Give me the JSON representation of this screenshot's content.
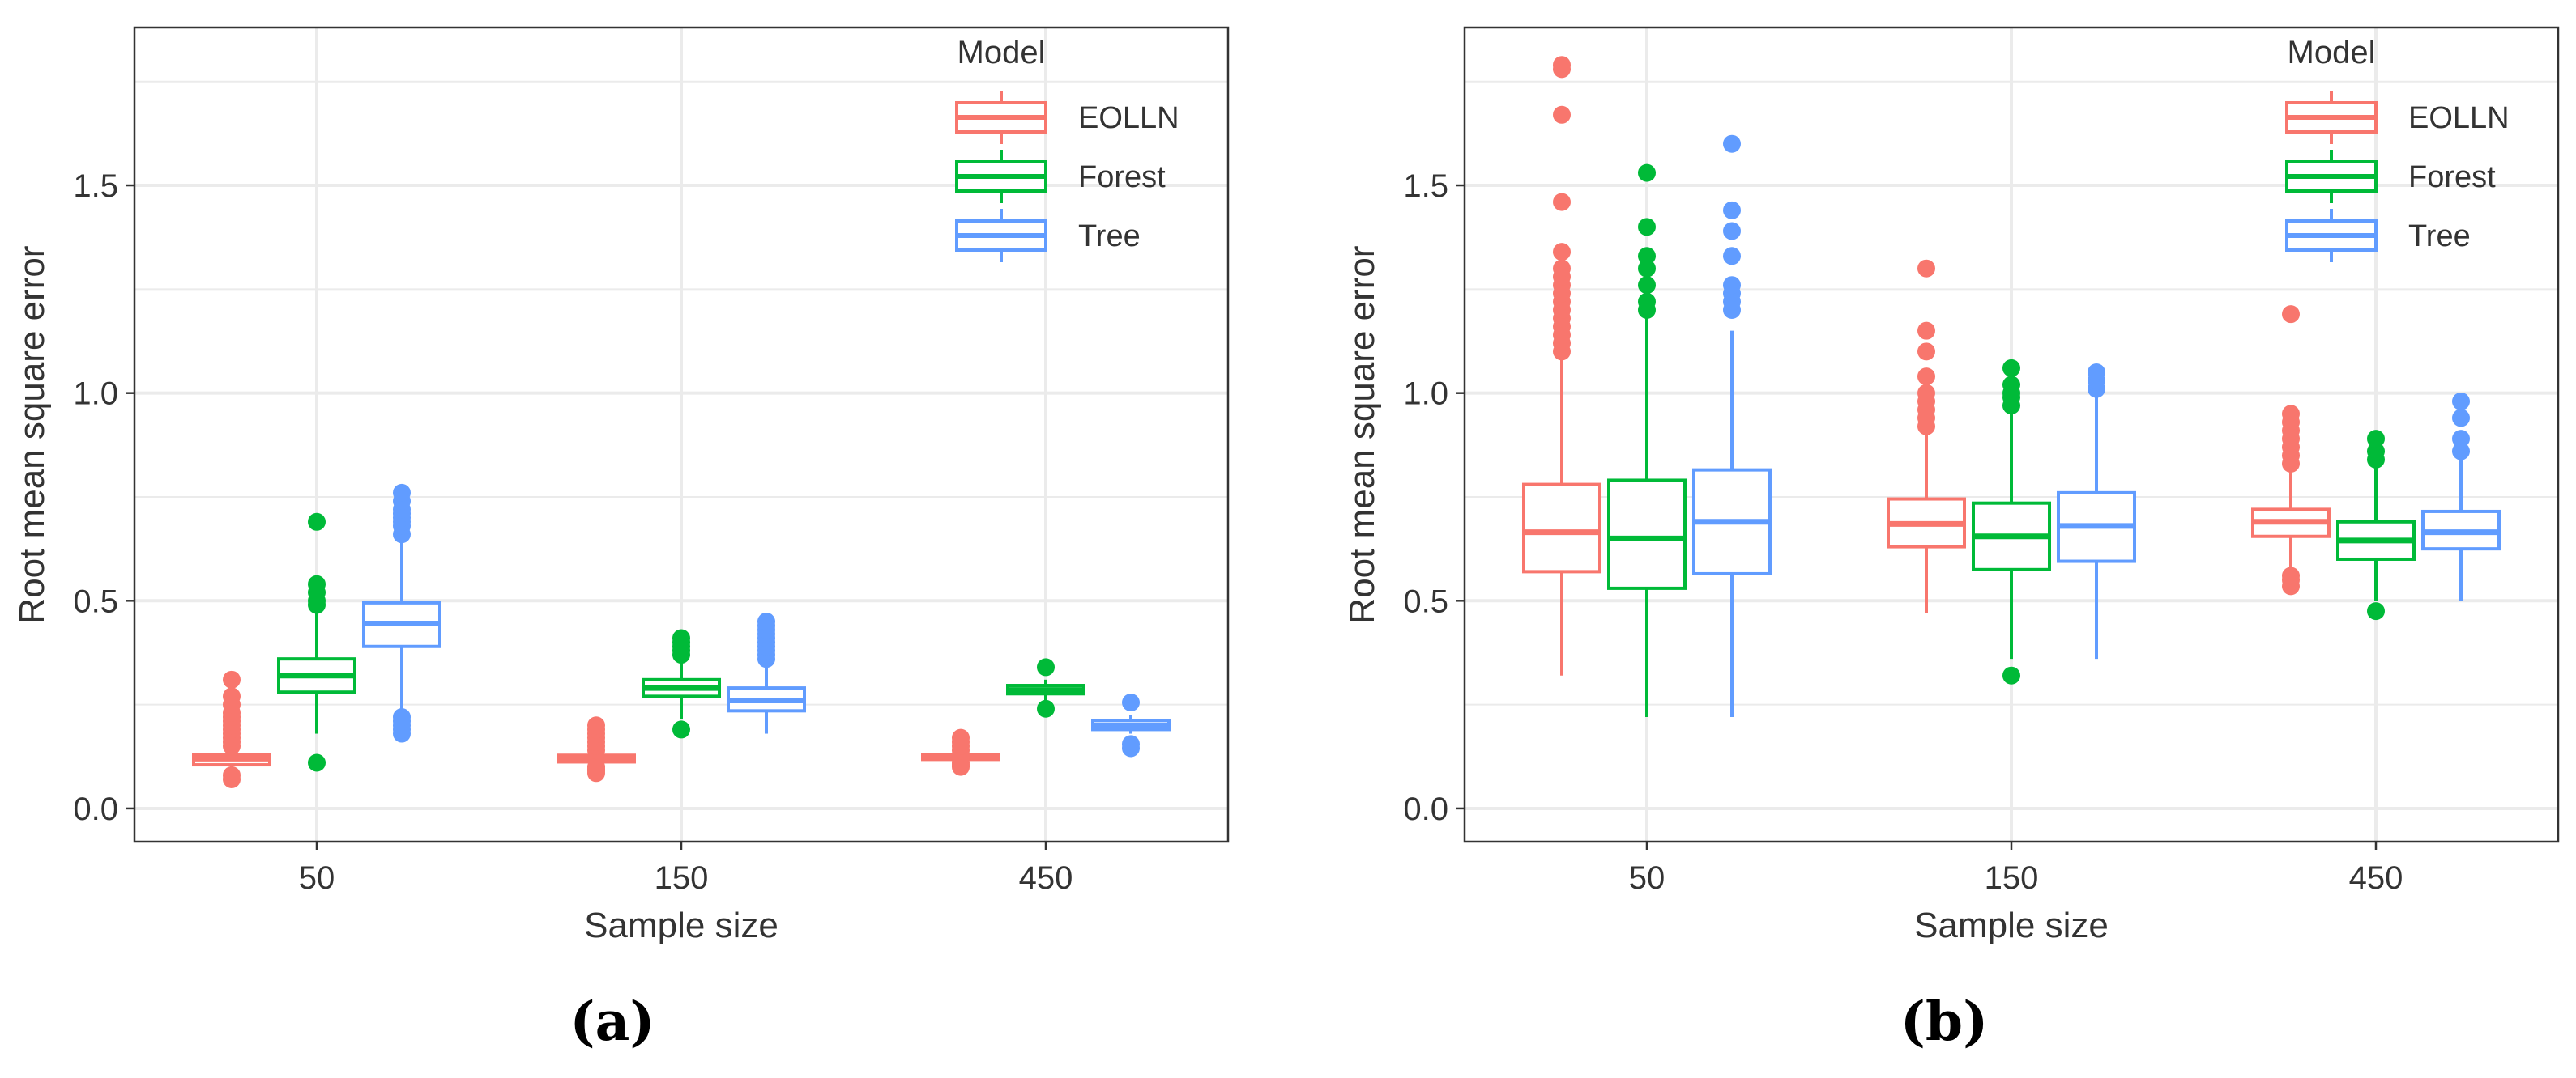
{
  "figure": {
    "panel_labels": [
      "(a)",
      "(b)"
    ]
  },
  "colors": {
    "EOLLN": "#F8766D",
    "Forest": "#00BA38",
    "Tree": "#619CFF"
  },
  "chart_data": [
    {
      "type": "box",
      "panel": "(a)",
      "xlabel": "Sample size",
      "ylabel": "Root mean square error",
      "ylim": [
        -0.08,
        1.88
      ],
      "yticks": [
        0.0,
        0.5,
        1.0,
        1.5
      ],
      "ytick_labels": [
        "0.0",
        "0.5",
        "1.0",
        "1.5"
      ],
      "categories": [
        "50",
        "150",
        "450"
      ],
      "legend": {
        "title": "Model",
        "position": "top-right",
        "entries": [
          "EOLLN",
          "Forest",
          "Tree"
        ]
      },
      "series": [
        {
          "name": "EOLLN",
          "boxes": [
            {
              "category": "50",
              "whisker_low": 0.1,
              "q1": 0.105,
              "median": 0.12,
              "q3": 0.13,
              "whisker_high": 0.145,
              "outliers": [
                0.07,
                0.08,
                0.15,
                0.16,
                0.17,
                0.18,
                0.19,
                0.2,
                0.21,
                0.22,
                0.23,
                0.25,
                0.27,
                0.31
              ]
            },
            {
              "category": "150",
              "whisker_low": 0.105,
              "q1": 0.112,
              "median": 0.12,
              "q3": 0.128,
              "whisker_high": 0.135,
              "outliers": [
                0.085,
                0.09,
                0.095,
                0.1,
                0.14,
                0.15,
                0.16,
                0.17,
                0.18,
                0.19,
                0.2
              ]
            },
            {
              "category": "450",
              "whisker_low": 0.115,
              "q1": 0.118,
              "median": 0.124,
              "q3": 0.13,
              "whisker_high": 0.134,
              "outliers": [
                0.1,
                0.105,
                0.11,
                0.14,
                0.15,
                0.16,
                0.17
              ]
            }
          ]
        },
        {
          "name": "Forest",
          "boxes": [
            {
              "category": "50",
              "whisker_low": 0.18,
              "q1": 0.28,
              "median": 0.32,
              "q3": 0.36,
              "whisker_high": 0.48,
              "outliers": [
                0.11,
                0.49,
                0.5,
                0.52,
                0.54,
                0.69
              ]
            },
            {
              "category": "150",
              "whisker_low": 0.215,
              "q1": 0.27,
              "median": 0.29,
              "q3": 0.31,
              "whisker_high": 0.36,
              "outliers": [
                0.19,
                0.37,
                0.38,
                0.39,
                0.4,
                0.41
              ]
            },
            {
              "category": "450",
              "whisker_low": 0.26,
              "q1": 0.276,
              "median": 0.285,
              "q3": 0.296,
              "whisker_high": 0.31,
              "outliers": [
                0.24,
                0.34
              ]
            }
          ]
        },
        {
          "name": "Tree",
          "boxes": [
            {
              "category": "50",
              "whisker_low": 0.23,
              "q1": 0.39,
              "median": 0.445,
              "q3": 0.495,
              "whisker_high": 0.65,
              "outliers": [
                0.18,
                0.19,
                0.2,
                0.21,
                0.22,
                0.66,
                0.68,
                0.69,
                0.7,
                0.71,
                0.72,
                0.74,
                0.76
              ]
            },
            {
              "category": "150",
              "whisker_low": 0.18,
              "q1": 0.235,
              "median": 0.26,
              "q3": 0.29,
              "whisker_high": 0.35,
              "outliers": [
                0.36,
                0.37,
                0.38,
                0.39,
                0.4,
                0.41,
                0.42,
                0.43,
                0.44,
                0.45
              ]
            },
            {
              "category": "450",
              "whisker_low": 0.18,
              "q1": 0.19,
              "median": 0.2,
              "q3": 0.212,
              "whisker_high": 0.225,
              "outliers": [
                0.145,
                0.155,
                0.255
              ]
            }
          ]
        }
      ]
    },
    {
      "type": "box",
      "panel": "(b)",
      "xlabel": "Sample size",
      "ylabel": "Root mean square error",
      "ylim": [
        -0.08,
        1.88
      ],
      "yticks": [
        0.0,
        0.5,
        1.0,
        1.5
      ],
      "ytick_labels": [
        "0.0",
        "0.5",
        "1.0",
        "1.5"
      ],
      "categories": [
        "50",
        "150",
        "450"
      ],
      "legend": {
        "title": "Model",
        "position": "top-right",
        "entries": [
          "EOLLN",
          "Forest",
          "Tree"
        ]
      },
      "series": [
        {
          "name": "EOLLN",
          "boxes": [
            {
              "category": "50",
              "whisker_low": 0.32,
              "q1": 0.57,
              "median": 0.665,
              "q3": 0.78,
              "whisker_high": 1.08,
              "outliers": [
                1.1,
                1.12,
                1.14,
                1.16,
                1.18,
                1.2,
                1.22,
                1.24,
                1.26,
                1.28,
                1.3,
                1.34,
                1.46,
                1.67,
                1.78,
                1.79
              ]
            },
            {
              "category": "150",
              "whisker_low": 0.47,
              "q1": 0.63,
              "median": 0.685,
              "q3": 0.745,
              "whisker_high": 0.9,
              "outliers": [
                0.92,
                0.94,
                0.96,
                0.98,
                1.0,
                1.04,
                1.1,
                1.15,
                1.3
              ]
            },
            {
              "category": "450",
              "whisker_low": 0.57,
              "q1": 0.655,
              "median": 0.69,
              "q3": 0.72,
              "whisker_high": 0.81,
              "outliers": [
                0.535,
                0.55,
                0.56,
                0.83,
                0.85,
                0.87,
                0.89,
                0.91,
                0.93,
                0.95,
                1.19
              ]
            }
          ]
        },
        {
          "name": "Forest",
          "boxes": [
            {
              "category": "50",
              "whisker_low": 0.22,
              "q1": 0.53,
              "median": 0.65,
              "q3": 0.79,
              "whisker_high": 1.18,
              "outliers": [
                1.2,
                1.22,
                1.26,
                1.3,
                1.33,
                1.4,
                1.53
              ]
            },
            {
              "category": "150",
              "whisker_low": 0.36,
              "q1": 0.575,
              "median": 0.655,
              "q3": 0.735,
              "whisker_high": 0.95,
              "outliers": [
                0.32,
                0.97,
                0.99,
                1.0,
                1.02,
                1.06
              ]
            },
            {
              "category": "450",
              "whisker_low": 0.5,
              "q1": 0.6,
              "median": 0.645,
              "q3": 0.69,
              "whisker_high": 0.82,
              "outliers": [
                0.475,
                0.84,
                0.86,
                0.89
              ]
            }
          ]
        },
        {
          "name": "Tree",
          "boxes": [
            {
              "category": "50",
              "whisker_low": 0.22,
              "q1": 0.565,
              "median": 0.69,
              "q3": 0.815,
              "whisker_high": 1.15,
              "outliers": [
                1.2,
                1.22,
                1.24,
                1.26,
                1.33,
                1.39,
                1.44,
                1.6
              ]
            },
            {
              "category": "150",
              "whisker_low": 0.36,
              "q1": 0.595,
              "median": 0.68,
              "q3": 0.76,
              "whisker_high": 0.99,
              "outliers": [
                1.01,
                1.03,
                1.05
              ]
            },
            {
              "category": "450",
              "whisker_low": 0.5,
              "q1": 0.625,
              "median": 0.665,
              "q3": 0.715,
              "whisker_high": 0.84,
              "outliers": [
                0.86,
                0.89,
                0.94,
                0.98
              ]
            }
          ]
        }
      ]
    }
  ]
}
